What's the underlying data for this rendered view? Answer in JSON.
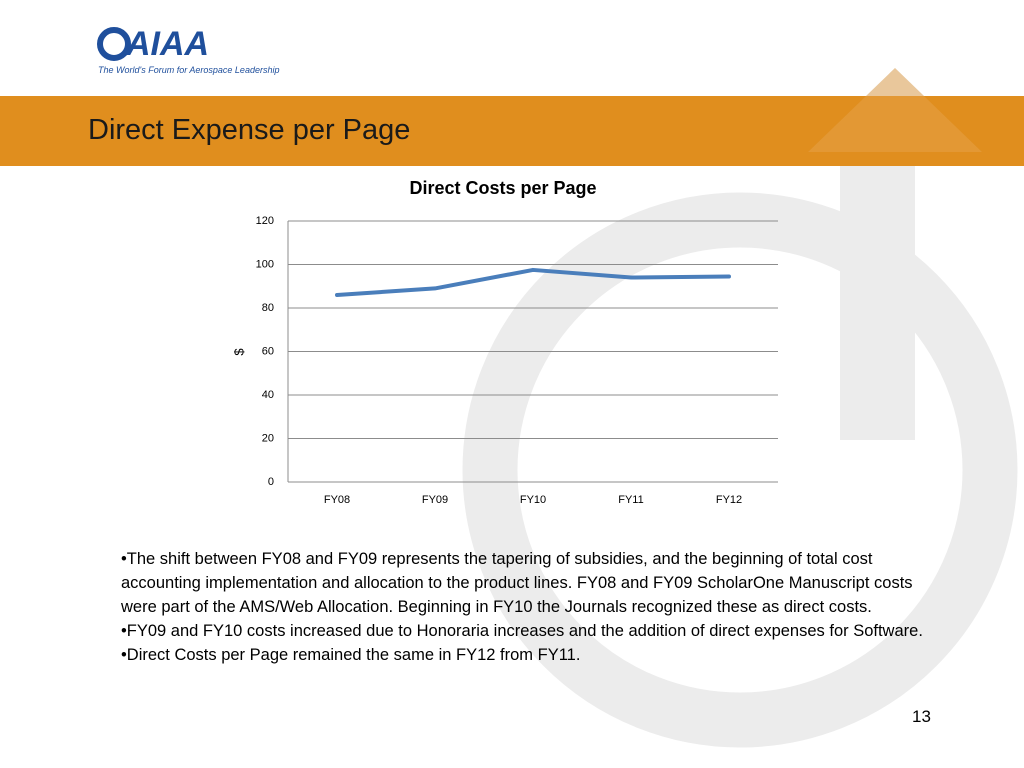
{
  "logo": {
    "name": "AIAA",
    "tagline": "The World's Forum for Aerospace Leadership"
  },
  "slide_title": "Direct Expense per Page",
  "chart_data": {
    "type": "line",
    "title": "Direct Costs per Page",
    "y_label": "$",
    "categories": [
      "FY08",
      "FY09",
      "FY10",
      "FY11",
      "FY12"
    ],
    "values": [
      86,
      89,
      97.5,
      94,
      94.5
    ],
    "color": "#4a7ebb",
    "ylim": [
      0,
      120
    ],
    "yticks": [
      0,
      20,
      40,
      60,
      80,
      100,
      120
    ],
    "grid": true
  },
  "bullets": [
    "•The shift between FY08 and FY09 represents the tapering of subsidies, and the beginning of total cost accounting implementation and allocation to the product lines. FY08 and FY09 ScholarOne Manuscript  costs were part of the AMS/Web Allocation. Beginning in FY10 the Journals recognized these as direct costs.",
    "•FY09 and FY10 costs increased due to Honoraria increases and the addition of direct expenses for Software.",
    "•Direct Costs per Page remained the same in FY12 from FY11."
  ],
  "page_number": "13"
}
